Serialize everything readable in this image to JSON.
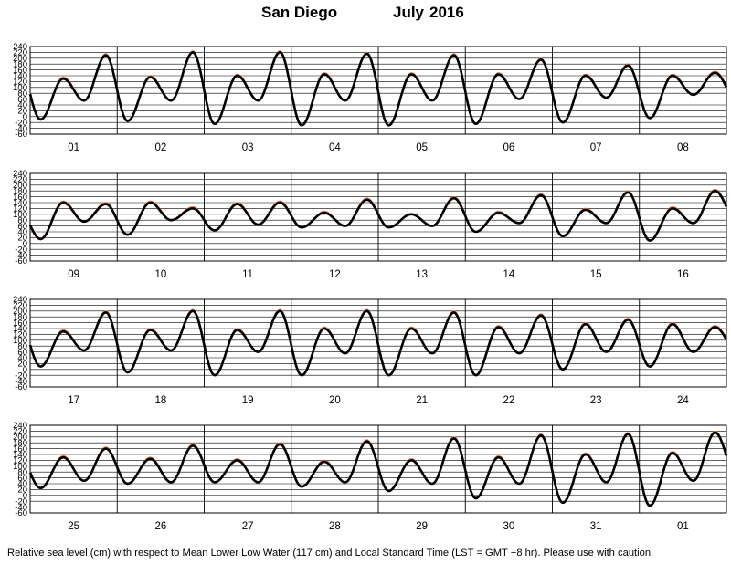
{
  "title": {
    "location": "San Diego",
    "month": "July",
    "year": "2016"
  },
  "caption": "Relative sea level (cm) with respect to Mean Lower Low Water (117 cm) and Local Standard Time (LST = GMT −8 hr). Please use with caution.",
  "colors": {
    "observed": "#000000",
    "predicted": "#e8743b",
    "grid": "#000000"
  },
  "chart_data": [
    {
      "type": "line",
      "x_day_labels": [
        "01",
        "02",
        "03",
        "04",
        "05",
        "06",
        "07",
        "08"
      ],
      "y_ticks": [
        240,
        220,
        200,
        180,
        160,
        140,
        120,
        100,
        80,
        60,
        40,
        20,
        0,
        -20,
        -40,
        -60
      ],
      "ylim": [
        -60,
        240
      ],
      "grid": true,
      "series": [
        {
          "name": "",
          "kind": "observed"
        },
        {
          "name": "",
          "kind": "predicted"
        }
      ],
      "daily_extremes_cm": {
        "low1": [
          -10,
          -15,
          -25,
          -30,
          -30,
          -25,
          -20,
          -5
        ],
        "high1": [
          130,
          135,
          140,
          145,
          145,
          145,
          140,
          140
        ],
        "low2": [
          55,
          55,
          55,
          55,
          55,
          60,
          65,
          75
        ],
        "high2": [
          210,
          220,
          220,
          215,
          210,
          195,
          175,
          150
        ]
      },
      "predicted_offset_cm": 5
    },
    {
      "type": "line",
      "x_day_labels": [
        "09",
        "10",
        "11",
        "12",
        "13",
        "14",
        "15",
        "16"
      ],
      "y_ticks": [
        240,
        220,
        200,
        180,
        160,
        140,
        120,
        100,
        80,
        60,
        40,
        20,
        0,
        -20,
        -40,
        -60
      ],
      "ylim": [
        -60,
        240
      ],
      "grid": true,
      "series": [
        {
          "name": "",
          "kind": "observed"
        },
        {
          "name": "",
          "kind": "predicted"
        }
      ],
      "daily_extremes_cm": {
        "low1": [
          15,
          30,
          45,
          55,
          55,
          40,
          25,
          10
        ],
        "high1": [
          140,
          140,
          135,
          105,
          100,
          105,
          115,
          120
        ],
        "low2": [
          75,
          80,
          65,
          60,
          60,
          70,
          70,
          70
        ],
        "high2": [
          135,
          120,
          140,
          150,
          155,
          165,
          175,
          180
        ]
      },
      "predicted_offset_cm": 5
    },
    {
      "type": "line",
      "x_day_labels": [
        "17",
        "18",
        "19",
        "20",
        "21",
        "22",
        "23",
        "24"
      ],
      "y_ticks": [
        240,
        220,
        200,
        180,
        160,
        140,
        120,
        100,
        80,
        60,
        40,
        20,
        0,
        -20,
        -40,
        -60
      ],
      "ylim": [
        -60,
        240
      ],
      "grid": true,
      "series": [
        {
          "name": "",
          "kind": "observed"
        },
        {
          "name": "",
          "kind": "predicted"
        }
      ],
      "daily_extremes_cm": {
        "low1": [
          10,
          -10,
          -20,
          -20,
          -20,
          -20,
          0,
          10
        ],
        "high1": [
          130,
          135,
          135,
          140,
          140,
          145,
          155,
          155
        ],
        "low2": [
          65,
          65,
          60,
          55,
          55,
          55,
          60,
          60
        ],
        "high2": [
          195,
          200,
          200,
          200,
          195,
          185,
          170,
          145
        ]
      },
      "predicted_offset_cm": 5
    },
    {
      "type": "line",
      "x_day_labels": [
        "25",
        "26",
        "27",
        "28",
        "29",
        "30",
        "31",
        "01"
      ],
      "y_ticks": [
        240,
        220,
        200,
        180,
        160,
        140,
        120,
        100,
        80,
        60,
        40,
        20,
        0,
        -20,
        -40,
        -60
      ],
      "ylim": [
        -60,
        240
      ],
      "grid": true,
      "series": [
        {
          "name": "",
          "kind": "observed"
        },
        {
          "name": "",
          "kind": "predicted"
        }
      ],
      "daily_extremes_cm": {
        "low1": [
          25,
          40,
          45,
          30,
          15,
          -10,
          -25,
          -35
        ],
        "high1": [
          130,
          125,
          120,
          115,
          120,
          130,
          140,
          145
        ],
        "low2": [
          50,
          45,
          45,
          45,
          40,
          40,
          45,
          50
        ],
        "high2": [
          160,
          170,
          175,
          185,
          195,
          205,
          210,
          215
        ]
      },
      "predicted_offset_cm": 5
    }
  ]
}
